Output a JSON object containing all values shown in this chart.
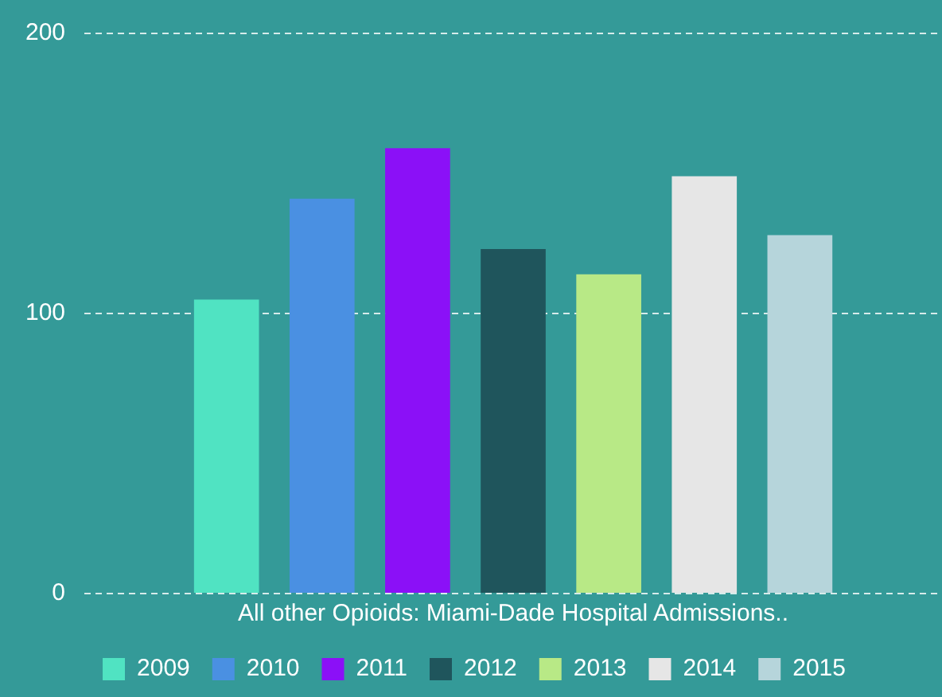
{
  "chart_data": {
    "type": "bar",
    "categories": [
      "All other Opioids: Miami-Dade Hospital Admissions.."
    ],
    "series": [
      {
        "name": "2009",
        "color": "#50e3c2",
        "values": [
          105
        ]
      },
      {
        "name": "2010",
        "color": "#4a90e2",
        "values": [
          141
        ]
      },
      {
        "name": "2011",
        "color": "#8b10f7",
        "values": [
          159
        ]
      },
      {
        "name": "2012",
        "color": "#1f555c",
        "values": [
          123
        ]
      },
      {
        "name": "2013",
        "color": "#b8e986",
        "values": [
          114
        ]
      },
      {
        "name": "2014",
        "color": "#e6e6e6",
        "values": [
          149
        ]
      },
      {
        "name": "2015",
        "color": "#b6d5db",
        "values": [
          128
        ]
      }
    ],
    "ylim": [
      0,
      200
    ],
    "yticks": [
      0,
      100,
      200
    ],
    "grid": "y",
    "legend": "bottom"
  }
}
